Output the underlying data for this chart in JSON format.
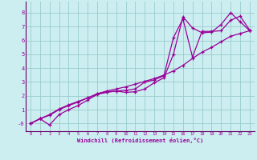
{
  "xlabel": "Windchill (Refroidissement éolien,°C)",
  "bg_color": "#cceef0",
  "line_color": "#990099",
  "grid_color": "#99cccc",
  "axis_color": "#660066",
  "xlim": [
    -0.5,
    23.5
  ],
  "ylim": [
    -0.55,
    8.8
  ],
  "xticks": [
    0,
    1,
    2,
    3,
    4,
    5,
    6,
    7,
    8,
    9,
    10,
    11,
    12,
    13,
    14,
    15,
    16,
    17,
    18,
    19,
    20,
    21,
    22,
    23
  ],
  "yticks": [
    0,
    1,
    2,
    3,
    4,
    5,
    6,
    7,
    8
  ],
  "ytick_labels": [
    "-0",
    "1",
    "2",
    "3",
    "4",
    "5",
    "6",
    "7",
    "8"
  ],
  "line1_x": [
    0,
    1,
    2,
    3,
    4,
    5,
    6,
    7,
    8,
    9,
    10,
    11,
    12,
    13,
    14,
    15,
    16,
    17,
    18,
    19,
    20,
    21,
    22,
    23
  ],
  "line1_y": [
    0.0,
    0.35,
    0.65,
    1.05,
    1.35,
    1.6,
    1.85,
    2.15,
    2.35,
    2.5,
    2.65,
    2.85,
    3.05,
    3.25,
    3.5,
    3.8,
    4.2,
    4.7,
    5.15,
    5.5,
    5.9,
    6.3,
    6.5,
    6.7
  ],
  "line2_x": [
    0,
    1,
    2,
    3,
    4,
    5,
    6,
    7,
    8,
    9,
    10,
    11,
    12,
    13,
    14,
    15,
    16,
    17,
    18,
    19,
    20,
    21,
    22,
    23
  ],
  "line2_y": [
    0.0,
    0.35,
    -0.1,
    0.65,
    1.0,
    1.3,
    1.7,
    2.1,
    2.25,
    2.35,
    2.25,
    2.3,
    2.5,
    2.95,
    3.3,
    5.0,
    7.7,
    6.9,
    6.55,
    6.6,
    7.15,
    8.0,
    7.35,
    6.7
  ],
  "line3_x": [
    0,
    1,
    2,
    3,
    4,
    5,
    6,
    7,
    8,
    9,
    10,
    11,
    12,
    13,
    14,
    15,
    16,
    17,
    18,
    19,
    20,
    21,
    22,
    23
  ],
  "line3_y": [
    0.0,
    0.35,
    0.6,
    1.0,
    1.3,
    1.55,
    1.85,
    2.15,
    2.3,
    2.35,
    2.4,
    2.5,
    3.0,
    3.15,
    3.45,
    6.2,
    7.55,
    4.8,
    6.65,
    6.65,
    6.7,
    7.45,
    7.75,
    6.75
  ]
}
